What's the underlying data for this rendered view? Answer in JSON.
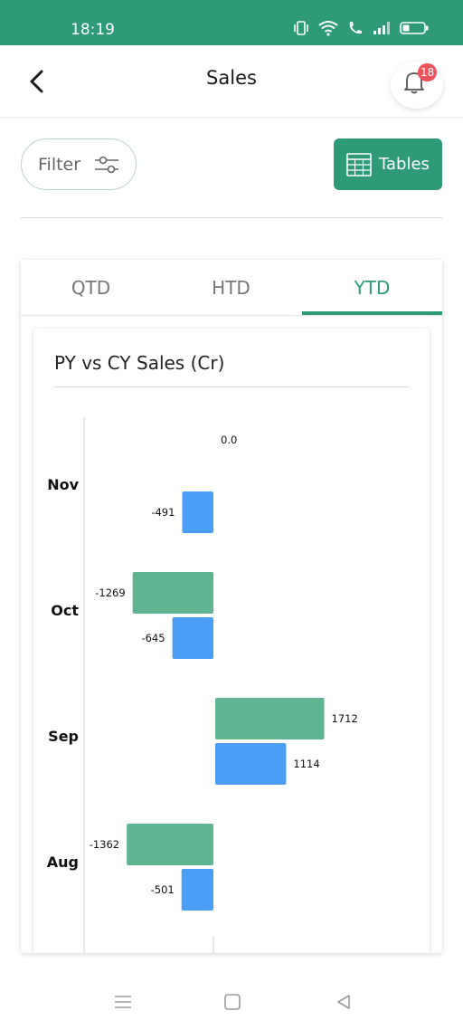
{
  "status_bar": {
    "time": "18:19",
    "icons": [
      "vibrate-icon",
      "wifi-icon",
      "wifi-call-icon",
      "signal-icon",
      "battery-icon"
    ]
  },
  "header": {
    "title": "Sales",
    "back_icon": "chevron-left-icon",
    "notification_icon": "bell-icon",
    "notification_count": "18"
  },
  "toolbar": {
    "filter_label": "Filter",
    "filter_icon": "sliders-icon",
    "tables_label": "Tables",
    "tables_icon": "table-grid-icon"
  },
  "tabs": [
    {
      "label": "QTD",
      "active": false
    },
    {
      "label": "HTD",
      "active": false
    },
    {
      "label": "YTD",
      "active": true
    }
  ],
  "colors": {
    "brand": "#2e9a78",
    "py_bar": "#5fb591",
    "cy_bar": "#4b9ef5",
    "badge": "#f0525a"
  },
  "chart_data": {
    "type": "bar",
    "orientation": "horizontal",
    "title": "PY vs CY Sales (Cr)",
    "categories": [
      "Nov",
      "Oct",
      "Sep",
      "Aug"
    ],
    "series": [
      {
        "values": [
          0.0,
          -1269,
          1712,
          -1362
        ],
        "labels": [
          "0.0",
          "-1269",
          "1712",
          "-1362"
        ],
        "color": "#5fb591"
      },
      {
        "values": [
          -491,
          -645,
          1114,
          -501
        ],
        "labels": [
          "-491",
          "-645",
          "1114",
          "-501"
        ],
        "color": "#4b9ef5"
      }
    ]
  },
  "nav_bar": {
    "icons": [
      "menu-icon",
      "home-square-icon",
      "back-triangle-icon"
    ]
  }
}
